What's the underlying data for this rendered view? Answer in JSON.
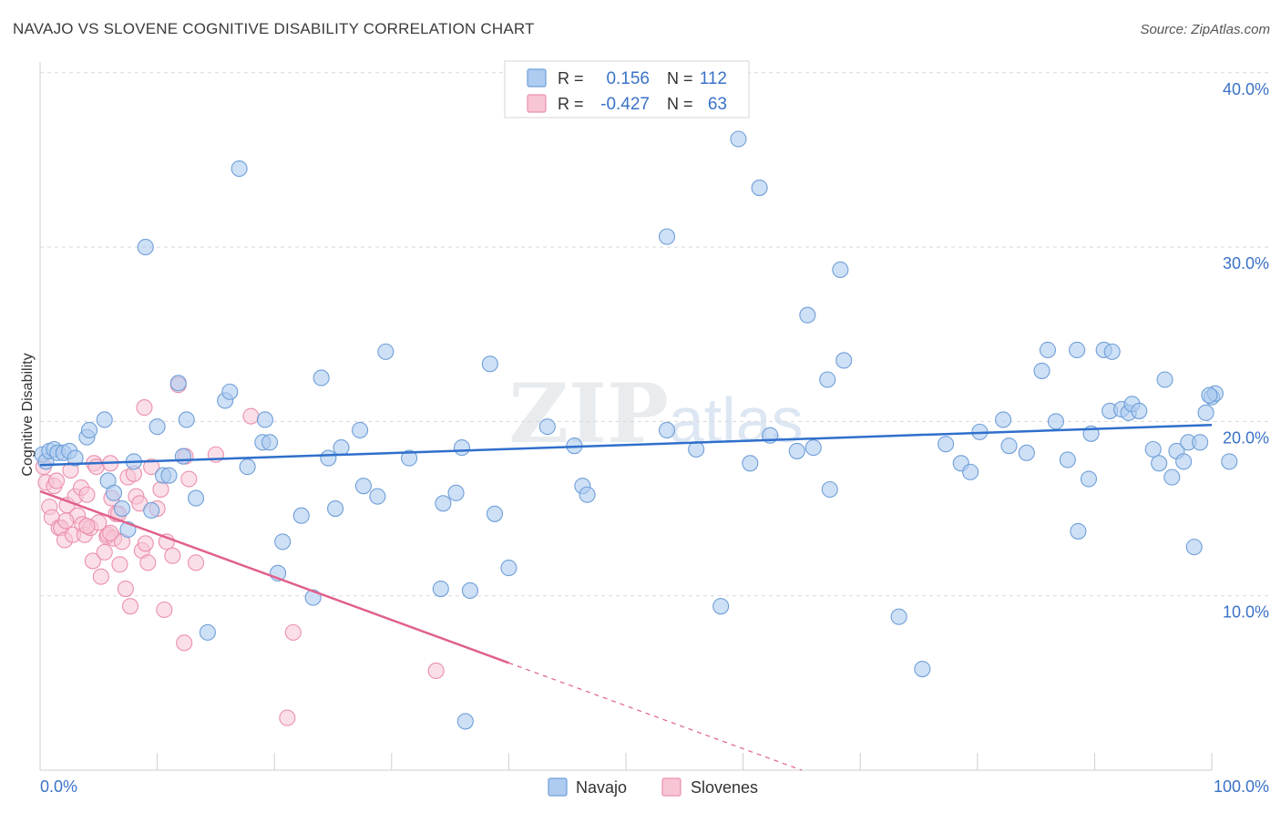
{
  "title": "NAVAJO VS SLOVENE COGNITIVE DISABILITY CORRELATION CHART",
  "source": "Source: ZipAtlas.com",
  "watermark": "ZIPatlas",
  "colors": {
    "navajo_fill": "#aecbf0",
    "navajo_stroke": "#6f9fd8",
    "navajo_line": "#2f6fcc",
    "slovene_fill": "#f8c5d5",
    "slovene_stroke": "#eb90ac",
    "slovene_line": "#e0608a",
    "accent_text": "#3a72c8",
    "grid": "#d8d8d8"
  },
  "legend_top": {
    "rows": [
      {
        "r_label": "R =",
        "r_value": "0.156",
        "n_label": "N =",
        "n_value": "112"
      },
      {
        "r_label": "R =",
        "r_value": "-0.427",
        "n_label": "N =",
        "n_value": "63"
      }
    ]
  },
  "legend_bottom": {
    "navajo": "Navajo",
    "slovenes": "Slovenes"
  },
  "chart_data": {
    "type": "scatter",
    "ylabel": "Cognitive Disability",
    "xlabel": "",
    "x_tick_labels": {
      "left": "0.0%",
      "right": "100.0%"
    },
    "y_tick_labels": [
      "10.0%",
      "20.0%",
      "30.0%",
      "40.0%"
    ],
    "xlim": [
      0,
      100
    ],
    "ylim": [
      0,
      40
    ],
    "grid": true,
    "series": [
      {
        "name": "Navajo",
        "trend": {
          "x": [
            0,
            100
          ],
          "y": [
            17.5,
            19.8
          ],
          "solid_to": 100
        },
        "points": [
          [
            0.2,
            18.1
          ],
          [
            0.5,
            17.7
          ],
          [
            0.8,
            18.3
          ],
          [
            1.2,
            18.4
          ],
          [
            1.5,
            18.2
          ],
          [
            2.0,
            18.2
          ],
          [
            2.5,
            18.3
          ],
          [
            3.0,
            17.9
          ],
          [
            4.0,
            19.1
          ],
          [
            4.2,
            19.5
          ],
          [
            5.5,
            20.1
          ],
          [
            5.8,
            16.6
          ],
          [
            6.3,
            15.9
          ],
          [
            7.0,
            15.0
          ],
          [
            7.5,
            13.8
          ],
          [
            8.0,
            17.7
          ],
          [
            9.0,
            30.0
          ],
          [
            9.5,
            14.9
          ],
          [
            10.0,
            19.7
          ],
          [
            10.5,
            16.9
          ],
          [
            11.0,
            16.9
          ],
          [
            11.8,
            22.2
          ],
          [
            12.2,
            18.0
          ],
          [
            12.5,
            20.1
          ],
          [
            13.3,
            15.6
          ],
          [
            14.3,
            7.9
          ],
          [
            15.8,
            21.2
          ],
          [
            16.2,
            21.7
          ],
          [
            17.0,
            34.5
          ],
          [
            17.7,
            17.4
          ],
          [
            19.0,
            18.8
          ],
          [
            19.2,
            20.1
          ],
          [
            19.6,
            18.8
          ],
          [
            20.3,
            11.3
          ],
          [
            20.7,
            13.1
          ],
          [
            22.3,
            14.6
          ],
          [
            23.3,
            9.9
          ],
          [
            24.0,
            22.5
          ],
          [
            24.6,
            17.9
          ],
          [
            25.2,
            15.0
          ],
          [
            25.7,
            18.5
          ],
          [
            27.3,
            19.5
          ],
          [
            27.6,
            16.3
          ],
          [
            28.8,
            15.7
          ],
          [
            29.5,
            24.0
          ],
          [
            31.5,
            17.9
          ],
          [
            34.2,
            10.4
          ],
          [
            34.4,
            15.3
          ],
          [
            35.5,
            15.9
          ],
          [
            36.0,
            18.5
          ],
          [
            36.3,
            2.8
          ],
          [
            36.7,
            10.3
          ],
          [
            38.4,
            23.3
          ],
          [
            38.8,
            14.7
          ],
          [
            40.0,
            11.6
          ],
          [
            43.3,
            19.7
          ],
          [
            45.6,
            18.6
          ],
          [
            46.3,
            16.3
          ],
          [
            46.7,
            15.8
          ],
          [
            53.5,
            30.6
          ],
          [
            53.5,
            19.5
          ],
          [
            56.0,
            18.4
          ],
          [
            58.1,
            9.4
          ],
          [
            59.6,
            36.2
          ],
          [
            60.6,
            17.6
          ],
          [
            61.4,
            33.4
          ],
          [
            62.3,
            19.2
          ],
          [
            64.6,
            18.3
          ],
          [
            65.5,
            26.1
          ],
          [
            66.0,
            18.5
          ],
          [
            67.2,
            22.4
          ],
          [
            67.4,
            16.1
          ],
          [
            68.3,
            28.7
          ],
          [
            68.6,
            23.5
          ],
          [
            73.3,
            8.8
          ],
          [
            75.3,
            5.8
          ],
          [
            77.3,
            18.7
          ],
          [
            78.6,
            17.6
          ],
          [
            79.4,
            17.1
          ],
          [
            80.2,
            19.4
          ],
          [
            82.2,
            20.1
          ],
          [
            82.7,
            18.6
          ],
          [
            84.2,
            18.2
          ],
          [
            85.5,
            22.9
          ],
          [
            86.0,
            24.1
          ],
          [
            86.7,
            20.0
          ],
          [
            87.7,
            17.8
          ],
          [
            88.5,
            24.1
          ],
          [
            88.6,
            13.7
          ],
          [
            89.5,
            16.7
          ],
          [
            89.7,
            19.3
          ],
          [
            90.8,
            24.1
          ],
          [
            91.3,
            20.6
          ],
          [
            91.5,
            24.0
          ],
          [
            92.3,
            20.7
          ],
          [
            92.9,
            20.5
          ],
          [
            93.2,
            21.0
          ],
          [
            93.8,
            20.6
          ],
          [
            95.0,
            18.4
          ],
          [
            95.5,
            17.6
          ],
          [
            96.0,
            22.4
          ],
          [
            96.6,
            16.8
          ],
          [
            97.0,
            18.3
          ],
          [
            97.6,
            17.7
          ],
          [
            98.0,
            18.8
          ],
          [
            98.5,
            12.8
          ],
          [
            99.0,
            18.8
          ],
          [
            99.5,
            20.5
          ],
          [
            100.0,
            21.4
          ],
          [
            100.3,
            21.6
          ],
          [
            101.5,
            17.7
          ],
          [
            99.8,
            21.5
          ]
        ]
      },
      {
        "name": "Slovenes",
        "trend": {
          "x": [
            0,
            65
          ],
          "y": [
            16.0,
            0.0
          ],
          "solid_to": 40
        },
        "points": [
          [
            0.3,
            17.4
          ],
          [
            0.5,
            16.5
          ],
          [
            0.8,
            15.1
          ],
          [
            1.0,
            14.5
          ],
          [
            1.2,
            16.3
          ],
          [
            1.4,
            16.6
          ],
          [
            1.6,
            13.9
          ],
          [
            1.8,
            13.9
          ],
          [
            2.1,
            13.2
          ],
          [
            2.3,
            15.2
          ],
          [
            2.6,
            17.2
          ],
          [
            2.8,
            13.5
          ],
          [
            3.0,
            15.7
          ],
          [
            3.2,
            14.6
          ],
          [
            3.5,
            16.2
          ],
          [
            3.6,
            14.1
          ],
          [
            3.8,
            13.5
          ],
          [
            4.0,
            15.8
          ],
          [
            4.3,
            13.9
          ],
          [
            4.5,
            12.0
          ],
          [
            4.6,
            17.6
          ],
          [
            4.8,
            17.4
          ],
          [
            5.0,
            14.2
          ],
          [
            5.2,
            11.1
          ],
          [
            5.5,
            12.5
          ],
          [
            5.7,
            13.4
          ],
          [
            5.8,
            13.5
          ],
          [
            6.0,
            17.6
          ],
          [
            6.1,
            15.6
          ],
          [
            6.3,
            13.3
          ],
          [
            6.5,
            14.7
          ],
          [
            6.7,
            14.7
          ],
          [
            6.8,
            11.8
          ],
          [
            7.0,
            13.1
          ],
          [
            7.3,
            10.4
          ],
          [
            7.5,
            16.8
          ],
          [
            7.7,
            9.4
          ],
          [
            8.0,
            17.0
          ],
          [
            8.2,
            15.7
          ],
          [
            8.5,
            15.3
          ],
          [
            8.7,
            12.6
          ],
          [
            8.9,
            20.8
          ],
          [
            9.0,
            13.0
          ],
          [
            9.2,
            11.9
          ],
          [
            9.5,
            17.4
          ],
          [
            10.0,
            15.0
          ],
          [
            10.3,
            16.1
          ],
          [
            10.6,
            9.2
          ],
          [
            10.8,
            13.1
          ],
          [
            11.3,
            12.3
          ],
          [
            11.8,
            22.1
          ],
          [
            12.3,
            7.3
          ],
          [
            12.4,
            18.0
          ],
          [
            12.7,
            16.7
          ],
          [
            13.3,
            11.9
          ],
          [
            15.0,
            18.1
          ],
          [
            18.0,
            20.3
          ],
          [
            21.1,
            3.0
          ],
          [
            21.6,
            7.9
          ],
          [
            33.8,
            5.7
          ],
          [
            2.2,
            14.3
          ],
          [
            6.0,
            13.6
          ],
          [
            4.0,
            14.0
          ]
        ]
      }
    ]
  }
}
